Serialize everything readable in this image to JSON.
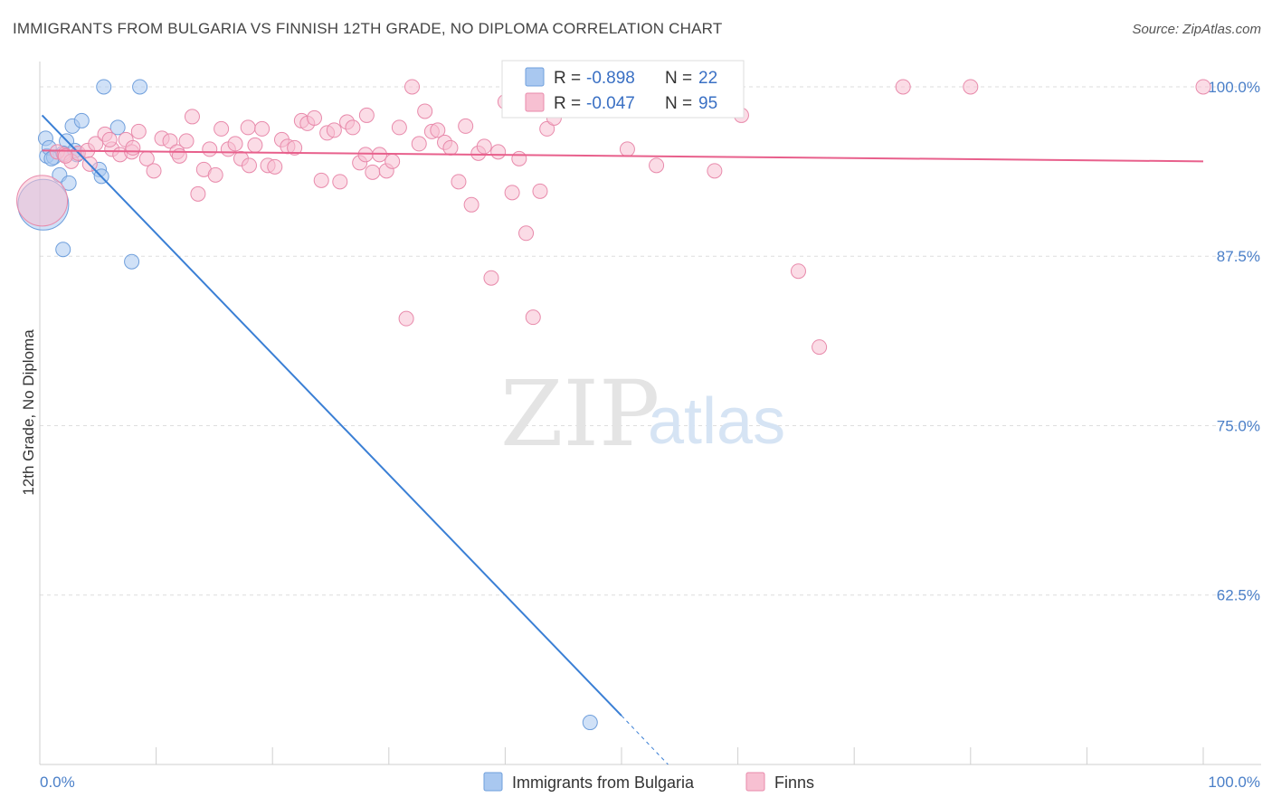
{
  "title": "IMMIGRANTS FROM BULGARIA VS FINNISH 12TH GRADE, NO DIPLOMA CORRELATION CHART",
  "source": "Source: ZipAtlas.com",
  "watermark": {
    "zip": "ZIP",
    "atlas": "atlas"
  },
  "legend": {
    "rows": [
      {
        "r_label": "R =",
        "r_value": "-0.898",
        "n_label": "N =",
        "n_value": "22",
        "color": "#a9c8f0",
        "stroke": "#6f9fdc"
      },
      {
        "r_label": "R =",
        "r_value": "-0.047",
        "n_label": "N =",
        "n_value": "95",
        "color": "#f7c0d2",
        "stroke": "#e88aab"
      }
    ]
  },
  "bottom_legend": [
    {
      "label": "Immigrants from Bulgaria",
      "color": "#a9c8f0",
      "stroke": "#6f9fdc"
    },
    {
      "label": "Finns",
      "color": "#f7c0d2",
      "stroke": "#e88aab"
    }
  ],
  "chart_data": {
    "type": "scatter",
    "title": "IMMIGRANTS FROM BULGARIA VS FINNISH 12TH GRADE, NO DIPLOMA CORRELATION CHART",
    "xlabel": "",
    "ylabel": "12th Grade, No Diploma",
    "xlim": [
      0,
      100
    ],
    "ylim": [
      50,
      101.2
    ],
    "x_tick_labels": [
      "0.0%",
      "100.0%"
    ],
    "y_ticks": [
      62.5,
      75.0,
      87.5,
      100.0
    ],
    "y_tick_labels": [
      "62.5%",
      "75.0%",
      "87.5%",
      "100.0%"
    ],
    "grid": true,
    "series": [
      {
        "name": "Immigrants from Bulgaria",
        "color": "#a9c8f0",
        "stroke": "#6f9fdc",
        "trend_color": "#3a7fd5",
        "trend": {
          "x0": 0.2,
          "y0": 97.9,
          "x1": 50.0,
          "y1": 53.6,
          "dash_x1": 54.0,
          "dash_y1": 50.0
        },
        "points": [
          [
            0.3,
            91.3,
            3.5
          ],
          [
            0.5,
            96.2,
            1
          ],
          [
            0.6,
            94.9,
            1
          ],
          [
            0.8,
            95.5,
            1
          ],
          [
            1.2,
            94.8,
            1
          ],
          [
            1.7,
            93.5,
            1
          ],
          [
            2.0,
            88.0,
            1
          ],
          [
            2.3,
            96.0,
            1
          ],
          [
            2.5,
            92.9,
            1
          ],
          [
            2.8,
            97.1,
            1
          ],
          [
            3.2,
            95.0,
            1
          ],
          [
            3.6,
            97.5,
            1
          ],
          [
            5.1,
            93.9,
            1
          ],
          [
            5.3,
            93.4,
            1
          ],
          [
            5.5,
            100.0,
            1
          ],
          [
            6.7,
            97.0,
            1
          ],
          [
            7.9,
            87.1,
            1
          ],
          [
            8.6,
            100.0,
            1
          ],
          [
            47.3,
            53.1,
            1
          ],
          [
            1.0,
            94.7,
            1
          ],
          [
            2.0,
            95.1,
            1
          ],
          [
            3.0,
            95.3,
            1
          ]
        ]
      },
      {
        "name": "Finns",
        "color": "#f7c0d2",
        "stroke": "#e88aab",
        "trend_color": "#e8608c",
        "trend": {
          "x0": 0.2,
          "y0": 95.3,
          "x1": 100.0,
          "y1": 94.5
        },
        "points": [
          [
            0.2,
            91.6,
            3.5
          ],
          [
            1.5,
            95.2,
            1
          ],
          [
            2.1,
            95.0,
            1
          ],
          [
            2.7,
            94.5,
            1
          ],
          [
            3.3,
            95.1,
            1
          ],
          [
            4.1,
            95.3,
            1
          ],
          [
            4.8,
            95.8,
            1
          ],
          [
            5.6,
            96.5,
            1
          ],
          [
            6.2,
            95.4,
            1
          ],
          [
            6.9,
            95.0,
            1
          ],
          [
            7.4,
            96.1,
            1
          ],
          [
            7.9,
            95.2,
            1
          ],
          [
            8.5,
            96.7,
            1
          ],
          [
            9.2,
            94.7,
            1
          ],
          [
            9.8,
            93.8,
            1
          ],
          [
            10.5,
            96.2,
            1
          ],
          [
            11.2,
            96.0,
            1
          ],
          [
            11.8,
            95.2,
            1
          ],
          [
            12.6,
            96.0,
            1
          ],
          [
            13.1,
            97.8,
            1
          ],
          [
            13.6,
            92.1,
            1
          ],
          [
            14.1,
            93.9,
            1
          ],
          [
            14.6,
            95.4,
            1
          ],
          [
            15.1,
            93.5,
            1
          ],
          [
            15.6,
            96.9,
            1
          ],
          [
            16.2,
            95.4,
            1
          ],
          [
            16.8,
            95.8,
            1
          ],
          [
            17.3,
            94.7,
            1
          ],
          [
            17.9,
            97.0,
            1
          ],
          [
            18.5,
            95.7,
            1
          ],
          [
            19.1,
            96.9,
            1
          ],
          [
            19.6,
            94.2,
            1
          ],
          [
            20.2,
            94.1,
            1
          ],
          [
            20.8,
            96.1,
            1
          ],
          [
            21.3,
            95.6,
            1
          ],
          [
            21.9,
            95.5,
            1
          ],
          [
            22.5,
            97.5,
            1
          ],
          [
            23.0,
            97.3,
            1
          ],
          [
            23.6,
            97.7,
            1
          ],
          [
            24.2,
            93.1,
            1
          ],
          [
            24.7,
            96.6,
            1
          ],
          [
            25.3,
            96.8,
            1
          ],
          [
            25.8,
            93.0,
            1
          ],
          [
            26.4,
            97.4,
            1
          ],
          [
            26.9,
            97.0,
            1
          ],
          [
            27.5,
            94.4,
            1
          ],
          [
            28.1,
            97.9,
            1
          ],
          [
            28.6,
            93.7,
            1
          ],
          [
            29.2,
            95.0,
            1
          ],
          [
            29.8,
            93.8,
            1
          ],
          [
            30.3,
            94.5,
            1
          ],
          [
            30.9,
            97.0,
            1
          ],
          [
            31.5,
            82.9,
            1
          ],
          [
            32.0,
            100.0,
            1
          ],
          [
            32.6,
            95.8,
            1
          ],
          [
            33.1,
            98.2,
            1
          ],
          [
            33.7,
            96.7,
            1
          ],
          [
            34.2,
            96.8,
            1
          ],
          [
            34.8,
            95.9,
            1
          ],
          [
            35.3,
            95.5,
            1
          ],
          [
            36.0,
            93.0,
            1
          ],
          [
            36.6,
            97.1,
            1
          ],
          [
            37.1,
            91.3,
            1
          ],
          [
            37.7,
            95.1,
            1
          ],
          [
            38.2,
            95.6,
            1
          ],
          [
            38.8,
            85.9,
            1
          ],
          [
            39.4,
            95.2,
            1
          ],
          [
            40.0,
            98.9,
            1
          ],
          [
            40.6,
            92.2,
            1
          ],
          [
            41.2,
            94.7,
            1
          ],
          [
            41.8,
            89.2,
            1
          ],
          [
            42.4,
            83.0,
            1
          ],
          [
            43.0,
            92.3,
            1
          ],
          [
            43.6,
            96.9,
            1
          ],
          [
            44.2,
            97.7,
            1
          ],
          [
            45.0,
            98.8,
            1
          ],
          [
            50.5,
            95.4,
            1
          ],
          [
            53.0,
            94.2,
            1
          ],
          [
            55.5,
            100.0,
            1
          ],
          [
            57.5,
            100.0,
            1
          ],
          [
            58.0,
            93.8,
            1
          ],
          [
            59.5,
            100.0,
            1
          ],
          [
            60.3,
            97.9,
            1
          ],
          [
            65.2,
            86.4,
            1
          ],
          [
            67.0,
            80.8,
            1
          ],
          [
            74.2,
            100.0,
            1
          ],
          [
            80.0,
            100.0,
            1
          ],
          [
            100.0,
            100.0,
            1
          ],
          [
            2.2,
            94.9,
            1
          ],
          [
            4.3,
            94.3,
            1
          ],
          [
            6.0,
            96.1,
            1
          ],
          [
            8.0,
            95.5,
            1
          ],
          [
            12.0,
            94.9,
            1
          ],
          [
            18.0,
            94.2,
            1
          ],
          [
            28.0,
            95.0,
            1
          ]
        ]
      }
    ]
  }
}
